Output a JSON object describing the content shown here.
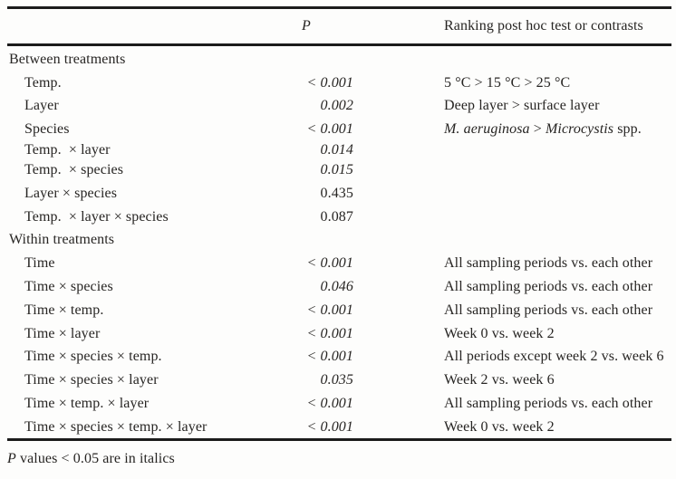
{
  "header": {
    "p_label": "P",
    "ranking_label": "Ranking post hoc test or contrasts"
  },
  "table": {
    "rows": [
      {
        "type": "section",
        "label": "Between treatments"
      },
      {
        "type": "data",
        "label": "Temp.",
        "p": "< 0.001",
        "p_italic": true,
        "ranking": "5 °C > 15 °C > 25 °C"
      },
      {
        "type": "data",
        "label": "Layer",
        "p": "0.002",
        "p_italic": true,
        "ranking": "Deep layer > surface layer"
      },
      {
        "type": "data",
        "label": "Species",
        "p": "< 0.001",
        "p_italic": true,
        "ranking_italic1": "M. aeruginosa",
        "ranking_sep": " > ",
        "ranking_italic2": "Microcystis",
        "ranking_tail": " spp."
      },
      {
        "type": "data",
        "label": "Temp.  × layer",
        "p": "0.014",
        "p_italic": true,
        "ranking": ""
      },
      {
        "type": "data",
        "label": "Temp.  × species",
        "p": "0.015",
        "p_italic": true,
        "ranking": ""
      },
      {
        "type": "data",
        "label": "Layer × species",
        "p": "0.435",
        "p_italic": false,
        "ranking": ""
      },
      {
        "type": "data",
        "label": "Temp.  × layer × species",
        "p": "0.087",
        "p_italic": false,
        "ranking": ""
      },
      {
        "type": "section",
        "label": "Within treatments"
      },
      {
        "type": "data",
        "label": "Time",
        "p": "< 0.001",
        "p_italic": true,
        "ranking": "All sampling periods vs. each other"
      },
      {
        "type": "data",
        "label": "Time × species",
        "p": "0.046",
        "p_italic": true,
        "ranking": "All sampling periods vs. each other"
      },
      {
        "type": "data",
        "label": "Time × temp.",
        "p": "< 0.001",
        "p_italic": true,
        "ranking": "All sampling periods vs. each other"
      },
      {
        "type": "data",
        "label": "Time × layer",
        "p": "< 0.001",
        "p_italic": true,
        "ranking": "Week 0 vs. week 2"
      },
      {
        "type": "data",
        "label": "Time × species × temp.",
        "p": "< 0.001",
        "p_italic": true,
        "ranking": "All periods except week 2 vs. week 6"
      },
      {
        "type": "data",
        "label": "Time × species × layer",
        "p": "0.035",
        "p_italic": true,
        "ranking": "Week 2 vs. week 6"
      },
      {
        "type": "data",
        "label": "Time × temp. × layer",
        "p": "< 0.001",
        "p_italic": true,
        "ranking": "All sampling periods vs. each other"
      },
      {
        "type": "data",
        "label": "Time × species × temp. × layer",
        "p": "< 0.001",
        "p_italic": true,
        "ranking": "Week 0 vs. week 2"
      }
    ]
  },
  "footnote": {
    "p_label": "P",
    "rest": " values < 0.05 are in italics"
  },
  "colors": {
    "text": "#272523",
    "rule": "#1b1b1b",
    "background": "#fdfdfc"
  }
}
